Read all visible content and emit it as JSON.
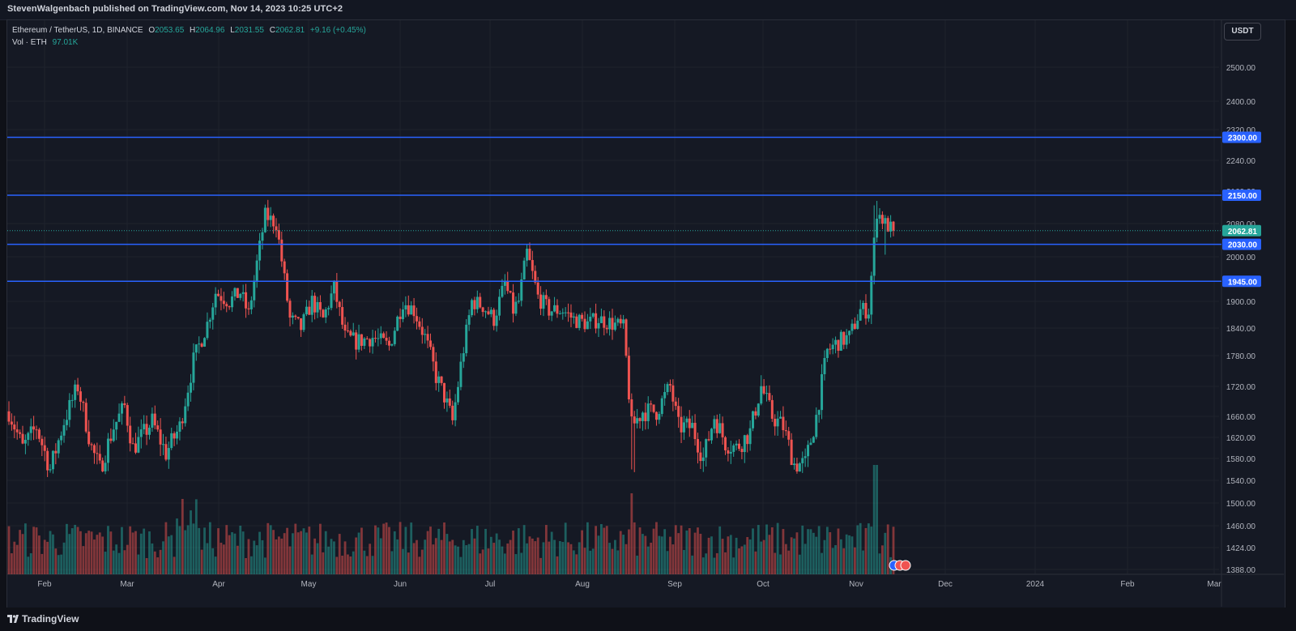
{
  "header": {
    "published_text": "StevenWalgenbach published on TradingView.com, Nov 14, 2023 10:25 UTC+2"
  },
  "legend": {
    "symbol": "Ethereum / TetherUS, 1D, BINANCE",
    "open_label": "O",
    "open": "2053.65",
    "high_label": "H",
    "high": "2064.96",
    "low_label": "L",
    "low": "2031.55",
    "close_label": "C",
    "close": "2062.81",
    "change": "+9.16 (+0.45%)",
    "vol_label": "Vol · ETH",
    "vol_value": "97.01K"
  },
  "currency_button": "USDT",
  "footer": {
    "brand": "TradingView"
  },
  "colors": {
    "up": "#26a69a",
    "down": "#ef5350",
    "level_line": "#2962ff",
    "background": "#151924",
    "grid": "#1e222d"
  },
  "chart_data": {
    "type": "candlestick",
    "symbol": "ETHUSDT",
    "timeframe": "1D",
    "price_axis": {
      "ticks": [
        2500,
        2400,
        2320,
        2240,
        2160,
        2080,
        2000,
        1900,
        1840,
        1780,
        1720,
        1660,
        1620,
        1580,
        1540,
        1500,
        1460,
        1424,
        1388
      ],
      "tick_labels": [
        "2500.00",
        "2400.00",
        "2320.00",
        "2240.00",
        "2160.00",
        "2080.00",
        "2000.00",
        "1900.00",
        "1840.00",
        "1780.00",
        "1720.00",
        "1660.00",
        "1620.00",
        "1580.00",
        "1540.00",
        "1500.00",
        "1460.00",
        "1424.00",
        "1388.00"
      ]
    },
    "time_axis": {
      "labels": [
        "Feb",
        "Mar",
        "Apr",
        "May",
        "Jun",
        "Jul",
        "Aug",
        "Sep",
        "Oct",
        "Nov",
        "Dec",
        "2024",
        "Feb",
        "Mar"
      ]
    },
    "horizontal_levels": [
      {
        "value": 2300,
        "label": "2300.00"
      },
      {
        "value": 2150,
        "label": "2150.00"
      },
      {
        "value": 2030,
        "label": "2030.00"
      },
      {
        "value": 1945,
        "label": "1945.00"
      }
    ],
    "last_price": {
      "value": 2062.81,
      "label": "2062.81"
    },
    "price_path": [
      [
        0,
        1670
      ],
      [
        5,
        1600
      ],
      [
        10,
        1640
      ],
      [
        15,
        1560
      ],
      [
        20,
        1650
      ],
      [
        25,
        1720
      ],
      [
        30,
        1600
      ],
      [
        33,
        1560
      ],
      [
        38,
        1640
      ],
      [
        42,
        1680
      ],
      [
        45,
        1600
      ],
      [
        48,
        1620
      ],
      [
        52,
        1650
      ],
      [
        57,
        1590
      ],
      [
        62,
        1640
      ],
      [
        67,
        1770
      ],
      [
        72,
        1850
      ],
      [
        75,
        1920
      ],
      [
        80,
        1900
      ],
      [
        84,
        1920
      ],
      [
        87,
        1870
      ],
      [
        93,
        2100
      ],
      [
        97,
        2080
      ],
      [
        102,
        1860
      ],
      [
        106,
        1840
      ],
      [
        110,
        1900
      ],
      [
        114,
        1860
      ],
      [
        118,
        1930
      ],
      [
        122,
        1820
      ],
      [
        126,
        1810
      ],
      [
        132,
        1820
      ],
      [
        138,
        1800
      ],
      [
        143,
        1900
      ],
      [
        147,
        1880
      ],
      [
        151,
        1820
      ],
      [
        155,
        1740
      ],
      [
        158,
        1700
      ],
      [
        161,
        1650
      ],
      [
        164,
        1760
      ],
      [
        168,
        1900
      ],
      [
        172,
        1890
      ],
      [
        176,
        1860
      ],
      [
        180,
        1940
      ],
      [
        183,
        1880
      ],
      [
        185,
        1900
      ],
      [
        188,
        2010
      ],
      [
        192,
        1910
      ],
      [
        196,
        1880
      ],
      [
        201,
        1880
      ],
      [
        205,
        1860
      ],
      [
        210,
        1850
      ],
      [
        214,
        1860
      ],
      [
        219,
        1850
      ],
      [
        223,
        1840
      ],
      [
        226,
        1640
      ],
      [
        230,
        1670
      ],
      [
        235,
        1670
      ],
      [
        240,
        1720
      ],
      [
        243,
        1640
      ],
      [
        248,
        1640
      ],
      [
        252,
        1580
      ],
      [
        256,
        1660
      ],
      [
        260,
        1610
      ],
      [
        264,
        1600
      ],
      [
        269,
        1630
      ],
      [
        273,
        1720
      ],
      [
        277,
        1660
      ],
      [
        281,
        1640
      ],
      [
        285,
        1570
      ],
      [
        289,
        1570
      ],
      [
        293,
        1660
      ],
      [
        297,
        1790
      ],
      [
        301,
        1810
      ],
      [
        305,
        1820
      ],
      [
        309,
        1880
      ],
      [
        312,
        1880
      ],
      [
        315,
        2110
      ],
      [
        318,
        2080
      ],
      [
        321,
        2062
      ]
    ],
    "volume_axis": {
      "label": "Vol · ETH",
      "last": "97.01K"
    }
  }
}
